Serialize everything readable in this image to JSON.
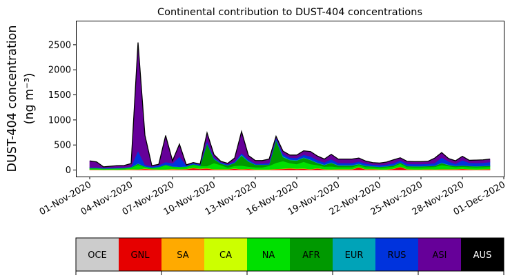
{
  "chart_data": {
    "type": "area",
    "title": "Continental contribution to DUST-404 concentrations",
    "ylabel_line1": "DUST-404 concentration",
    "ylabel_line2": "(ng m⁻³)",
    "xlabel": "",
    "x_start": "2020-11-01",
    "x_end": "2020-11-30",
    "xlim": [
      "2020-10-31",
      "2020-12-01"
    ],
    "ylim": [
      -130,
      2980
    ],
    "yticks": [
      0,
      500,
      1000,
      1500,
      2000,
      2500
    ],
    "xtick_labels": [
      "01-Nov-2020",
      "04-Nov-2020",
      "07-Nov-2020",
      "10-Nov-2020",
      "13-Nov-2020",
      "16-Nov-2020",
      "19-Nov-2020",
      "22-Nov-2020",
      "25-Nov-2020",
      "28-Nov-2020",
      "01-Dec-2020"
    ],
    "xtick_dates": [
      "2020-11-01",
      "2020-11-04",
      "2020-11-07",
      "2020-11-10",
      "2020-11-13",
      "2020-11-16",
      "2020-11-19",
      "2020-11-22",
      "2020-11-25",
      "2020-11-28",
      "2020-12-01"
    ],
    "colors": {
      "OCE": "#cccccc",
      "GNL": "#e60000",
      "SA": "#ffaa00",
      "CA": "#ccff00",
      "NA": "#00e000",
      "AFR": "#009900",
      "EUR": "#00a3b8",
      "RUS": "#0033dd",
      "ASI": "#660099",
      "AUS": "#000000"
    },
    "times": [
      "2020-11-01",
      "2020-11-01T12:00",
      "2020-11-02",
      "2020-11-02T12:00",
      "2020-11-03",
      "2020-11-03T12:00",
      "2020-11-04",
      "2020-11-04T12:00",
      "2020-11-05",
      "2020-11-05T12:00",
      "2020-11-06",
      "2020-11-06T12:00",
      "2020-11-07",
      "2020-11-07T12:00",
      "2020-11-08",
      "2020-11-08T12:00",
      "2020-11-09",
      "2020-11-09T12:00",
      "2020-11-10",
      "2020-11-10T12:00",
      "2020-11-11",
      "2020-11-11T12:00",
      "2020-11-12",
      "2020-11-12T12:00",
      "2020-11-13",
      "2020-11-13T12:00",
      "2020-11-14",
      "2020-11-14T12:00",
      "2020-11-15",
      "2020-11-15T12:00",
      "2020-11-16",
      "2020-11-16T12:00",
      "2020-11-17",
      "2020-11-17T12:00",
      "2020-11-18",
      "2020-11-18T12:00",
      "2020-11-19",
      "2020-11-19T12:00",
      "2020-11-20",
      "2020-11-20T12:00",
      "2020-11-21",
      "2020-11-21T12:00",
      "2020-11-22",
      "2020-11-22T12:00",
      "2020-11-23",
      "2020-11-23T12:00",
      "2020-11-24",
      "2020-11-24T12:00",
      "2020-11-25",
      "2020-11-25T12:00",
      "2020-11-26",
      "2020-11-26T12:00",
      "2020-11-27",
      "2020-11-27T12:00",
      "2020-11-28",
      "2020-11-28T12:00",
      "2020-11-29",
      "2020-11-29T12:00",
      "2020-11-30"
    ],
    "series": [
      {
        "name": "OCE",
        "values": [
          3,
          3,
          2,
          2,
          2,
          2,
          2,
          2,
          2,
          2,
          2,
          2,
          2,
          2,
          2,
          2,
          2,
          2,
          2,
          2,
          2,
          2,
          2,
          2,
          2,
          2,
          2,
          2,
          2,
          2,
          2,
          2,
          2,
          2,
          2,
          2,
          2,
          2,
          2,
          2,
          2,
          2,
          2,
          2,
          2,
          2,
          2,
          2,
          2,
          2,
          2,
          2,
          2,
          2,
          2,
          2,
          2,
          2,
          2
        ]
      },
      {
        "name": "GNL",
        "values": [
          5,
          5,
          3,
          5,
          3,
          3,
          5,
          8,
          20,
          10,
          5,
          5,
          10,
          8,
          15,
          35,
          20,
          30,
          10,
          10,
          10,
          25,
          10,
          20,
          5,
          5,
          5,
          15,
          20,
          30,
          20,
          25,
          10,
          30,
          10,
          5,
          10,
          10,
          10,
          50,
          10,
          15,
          5,
          5,
          20,
          60,
          10,
          5,
          5,
          10,
          5,
          10,
          10,
          10,
          20,
          10,
          5,
          10,
          15
        ]
      },
      {
        "name": "SA",
        "values": [
          2,
          2,
          2,
          2,
          2,
          5,
          10,
          3,
          10,
          5,
          5,
          5,
          10,
          5,
          5,
          5,
          5,
          5,
          5,
          5,
          5,
          5,
          5,
          5,
          5,
          5,
          5,
          5,
          5,
          5,
          5,
          5,
          5,
          5,
          5,
          5,
          5,
          5,
          5,
          5,
          5,
          5,
          5,
          5,
          5,
          5,
          5,
          5,
          5,
          5,
          5,
          5,
          5,
          5,
          5,
          5,
          5,
          5,
          5
        ]
      },
      {
        "name": "CA",
        "values": [
          2,
          2,
          2,
          2,
          2,
          2,
          2,
          2,
          2,
          2,
          2,
          2,
          2,
          2,
          2,
          2,
          2,
          2,
          2,
          2,
          2,
          2,
          2,
          2,
          2,
          2,
          2,
          2,
          2,
          2,
          2,
          2,
          2,
          2,
          2,
          2,
          2,
          2,
          2,
          2,
          2,
          2,
          2,
          2,
          2,
          2,
          2,
          2,
          2,
          2,
          2,
          2,
          2,
          2,
          2,
          2,
          2,
          2,
          2
        ]
      },
      {
        "name": "NA",
        "values": [
          20,
          20,
          15,
          15,
          20,
          20,
          30,
          90,
          30,
          20,
          40,
          80,
          40,
          40,
          40,
          60,
          50,
          40,
          120,
          80,
          30,
          50,
          70,
          40,
          40,
          40,
          70,
          120,
          150,
          100,
          90,
          130,
          100,
          60,
          50,
          60,
          40,
          40,
          40,
          40,
          40,
          30,
          30,
          40,
          40,
          60,
          40,
          40,
          40,
          40,
          50,
          80,
          60,
          40,
          40,
          40,
          40,
          40,
          40
        ]
      },
      {
        "name": "AFR",
        "values": [
          5,
          5,
          5,
          5,
          5,
          5,
          5,
          20,
          5,
          5,
          5,
          10,
          5,
          5,
          5,
          10,
          5,
          450,
          80,
          30,
          40,
          60,
          200,
          100,
          50,
          50,
          20,
          450,
          80,
          60,
          70,
          80,
          80,
          40,
          30,
          70,
          30,
          30,
          30,
          20,
          20,
          20,
          20,
          20,
          20,
          20,
          20,
          20,
          20,
          20,
          20,
          40,
          20,
          20,
          20,
          20,
          20,
          20,
          20
        ]
      },
      {
        "name": "EUR",
        "values": [
          5,
          5,
          5,
          5,
          5,
          5,
          5,
          10,
          5,
          5,
          5,
          5,
          5,
          5,
          5,
          5,
          5,
          5,
          10,
          5,
          5,
          5,
          20,
          10,
          5,
          5,
          5,
          10,
          20,
          10,
          10,
          10,
          10,
          10,
          10,
          10,
          10,
          10,
          10,
          10,
          10,
          5,
          5,
          5,
          5,
          5,
          5,
          5,
          5,
          5,
          5,
          10,
          10,
          5,
          5,
          5,
          5,
          5,
          5
        ]
      },
      {
        "name": "RUS",
        "values": [
          10,
          10,
          10,
          10,
          10,
          10,
          10,
          250,
          30,
          20,
          30,
          50,
          60,
          200,
          20,
          20,
          20,
          40,
          20,
          20,
          20,
          20,
          30,
          30,
          20,
          20,
          30,
          40,
          40,
          40,
          40,
          50,
          60,
          50,
          40,
          60,
          40,
          40,
          40,
          40,
          40,
          30,
          30,
          30,
          40,
          40,
          40,
          40,
          40,
          40,
          50,
          100,
          60,
          40,
          100,
          60,
          60,
          60,
          70
        ]
      },
      {
        "name": "ASI",
        "values": [
          130,
          110,
          20,
          30,
          40,
          40,
          60,
          2160,
          590,
          20,
          20,
          530,
          50,
          250,
          10,
          10,
          10,
          170,
          60,
          20,
          20,
          70,
          430,
          80,
          60,
          60,
          80,
          30,
          60,
          50,
          60,
          80,
          100,
          80,
          70,
          100,
          80,
          80,
          80,
          70,
          50,
          40,
          40,
          50,
          70,
          50,
          50,
          50,
          50,
          50,
          100,
          100,
          60,
          60,
          80,
          50,
          60,
          60,
          60
        ]
      },
      {
        "name": "AUS",
        "values": [
          0,
          0,
          0,
          0,
          0,
          0,
          0,
          0,
          0,
          0,
          0,
          0,
          0,
          0,
          0,
          0,
          0,
          0,
          0,
          0,
          0,
          0,
          0,
          0,
          0,
          0,
          0,
          0,
          0,
          0,
          0,
          0,
          0,
          0,
          0,
          0,
          0,
          0,
          0,
          0,
          0,
          0,
          0,
          0,
          0,
          0,
          0,
          0,
          0,
          0,
          0,
          0,
          0,
          0,
          0,
          0,
          0,
          0,
          0
        ]
      }
    ],
    "legend": {
      "entries": [
        "OCE",
        "GNL",
        "SA",
        "CA",
        "NA",
        "AFR",
        "EUR",
        "RUS",
        "ASI",
        "AUS"
      ],
      "text_colors": [
        "#000000",
        "#000000",
        "#000000",
        "#000000",
        "#000000",
        "#000000",
        "#000000",
        "#000000",
        "#000000",
        "#ffffff"
      ]
    },
    "grid": false
  }
}
